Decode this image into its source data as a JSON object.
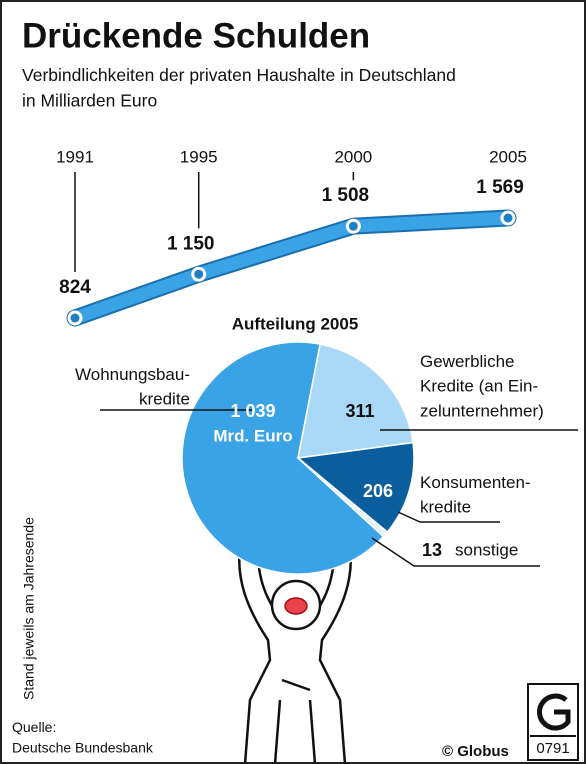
{
  "title": "Drückende Schulden",
  "subtitle": "Verbindlichkeiten der privaten Haushalte in Deutschland\nin Milliarden Euro",
  "note": "Stand jeweils am Jahresende",
  "source": "Quelle:\nDeutsche Bundesbank",
  "credit": "© Globus",
  "code": "0791",
  "chart_data": [
    {
      "type": "line",
      "x": [
        1991,
        1995,
        2000,
        2005
      ],
      "values": [
        824,
        1150,
        1508,
        1569
      ],
      "value_labels": [
        "824",
        "1 150",
        "1 508",
        "1 569"
      ],
      "color": "#3aa3e6"
    },
    {
      "type": "pie",
      "title": "Aufteilung 2005",
      "categories": [
        "Wohnungsbau-\nkredite",
        "Gewerbliche\nKredite (an Ein-\nzelunternehmer)",
        "Konsumenten-\nkredite",
        "sonstige"
      ],
      "values": [
        1039,
        311,
        206,
        13
      ],
      "value_labels": [
        "1 039",
        "311",
        "206",
        "13"
      ],
      "unit": "Mrd. Euro",
      "colors": [
        "#3aa3e6",
        "#a9d9f6",
        "#0b5e9e",
        "#e3f2fb"
      ]
    }
  ]
}
